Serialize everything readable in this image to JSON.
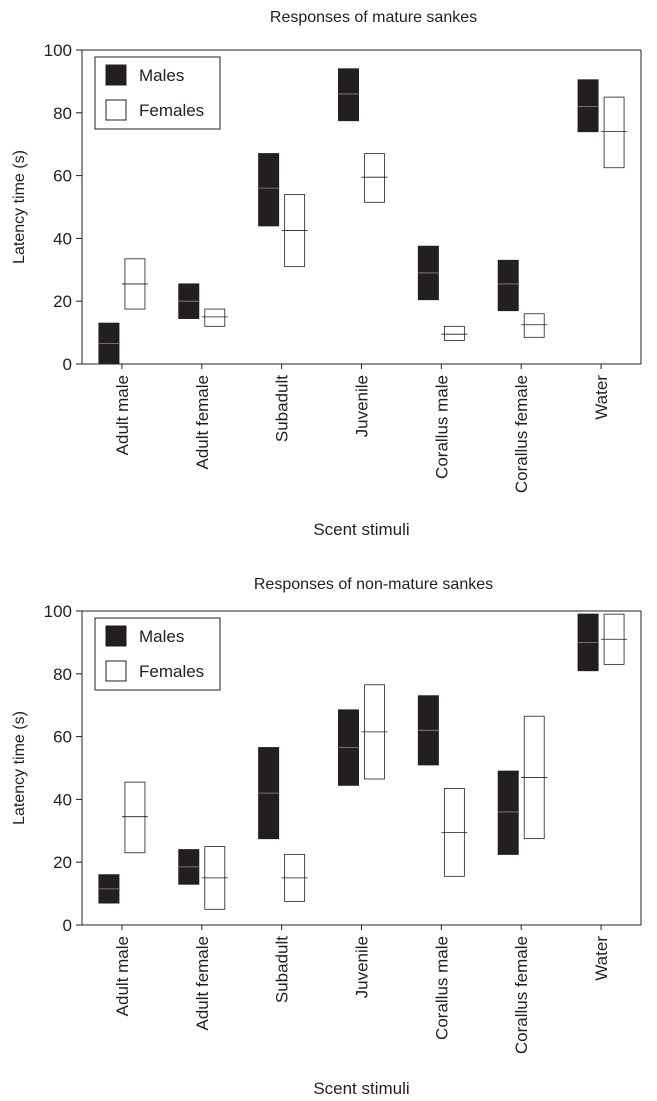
{
  "chart_data": [
    {
      "type": "box",
      "title": "Responses of mature sankes",
      "xlabel": "Scent stimuli",
      "ylabel": "Latency time (s)",
      "ylim": [
        0,
        100
      ],
      "yticks": [
        0,
        20,
        40,
        60,
        80,
        100
      ],
      "grid": false,
      "legend_position": "top-left",
      "categories": [
        "Adult male",
        "Adult female",
        "Subadult",
        "Juvenile",
        "Corallus male",
        "Corallus female",
        "Water"
      ],
      "series": [
        {
          "name": "Males",
          "fill": "#231f20",
          "low": [
            0,
            14.5,
            44,
            77.5,
            20.5,
            17,
            74
          ],
          "median": [
            6.5,
            20,
            56,
            86,
            29,
            25.5,
            82
          ],
          "high": [
            13,
            25.5,
            67,
            94,
            37.5,
            33,
            90.5
          ]
        },
        {
          "name": "Females",
          "fill": "#ffffff",
          "low": [
            17.5,
            12,
            31,
            51.5,
            7.5,
            8.5,
            62.5
          ],
          "median": [
            25.5,
            15,
            42.5,
            59.5,
            9.5,
            12.5,
            74
          ],
          "high": [
            33.5,
            17.5,
            54,
            67,
            12,
            16,
            85
          ]
        }
      ]
    },
    {
      "type": "box",
      "title": "Responses of non-mature sankes",
      "xlabel": "Scent stimuli",
      "ylabel": "Latency time (s)",
      "ylim": [
        0,
        100
      ],
      "yticks": [
        0,
        20,
        40,
        60,
        80,
        100
      ],
      "grid": false,
      "legend_position": "top-left",
      "categories": [
        "Adult male",
        "Adult female",
        "Subadult",
        "Juvenile",
        "Corallus male",
        "Corallus female",
        "Water"
      ],
      "series": [
        {
          "name": "Males",
          "fill": "#231f20",
          "low": [
            7,
            13,
            27.5,
            44.5,
            51,
            22.5,
            81
          ],
          "median": [
            11.5,
            18.5,
            42,
            56.5,
            62,
            36,
            90
          ],
          "high": [
            16,
            24,
            56.5,
            68.5,
            73,
            49,
            99
          ]
        },
        {
          "name": "Females",
          "fill": "#ffffff",
          "low": [
            23,
            5,
            7.5,
            46.5,
            15.5,
            27.5,
            83
          ],
          "median": [
            34.5,
            15,
            15,
            61.5,
            29.5,
            47,
            91
          ],
          "high": [
            45.5,
            25,
            22.5,
            76.5,
            43.5,
            66.5,
            99
          ]
        }
      ]
    }
  ]
}
